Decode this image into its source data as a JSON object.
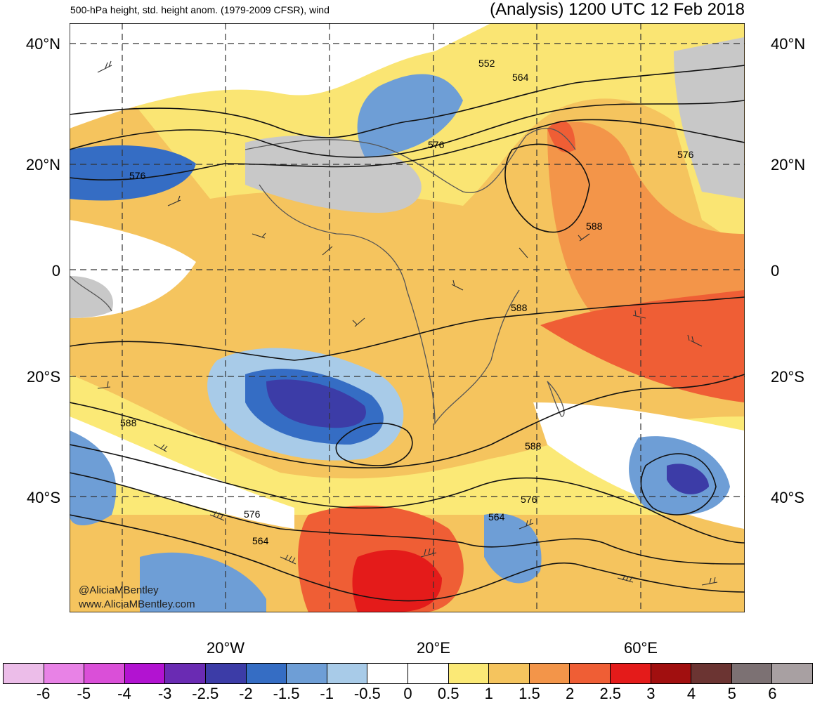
{
  "header": {
    "left_title": "500-hPa height, std. height anom. (1979-2009 CFSR), wind",
    "right_title": "(Analysis) 1200 UTC 12 Feb 2018"
  },
  "axes": {
    "lat_labels": [
      "40°N",
      "20°N",
      "0",
      "20°S",
      "40°S"
    ],
    "lon_labels": [
      "20°W",
      "20°E",
      "60°E"
    ]
  },
  "contour_labels": {
    "c552": "552",
    "c564": "564",
    "c576": "576",
    "c588": "588"
  },
  "colorbar": {
    "labels": [
      "-6",
      "-5",
      "-4",
      "-3",
      "-2.5",
      "-2",
      "-1.5",
      "-1",
      "-0.5",
      "0",
      "0.5",
      "1",
      "1.5",
      "2",
      "2.5",
      "3",
      "4",
      "5",
      "6"
    ],
    "colors": [
      "#ecbde9",
      "#e882e6",
      "#da4fd8",
      "#b213d1",
      "#6a2bb3",
      "#3c3ca7",
      "#356dc4",
      "#6e9ed6",
      "#a8cbe8",
      "#ffffff",
      "#ffffff",
      "#fbe976",
      "#f5c45e",
      "#f39549",
      "#ef5e35",
      "#e41b1a",
      "#a10f0f",
      "#6b3432",
      "#7c7173",
      "#a8a0a2"
    ]
  },
  "credits": {
    "handle": "@AliciaMBentley",
    "site": "www.AliciaMBentley.com"
  }
}
